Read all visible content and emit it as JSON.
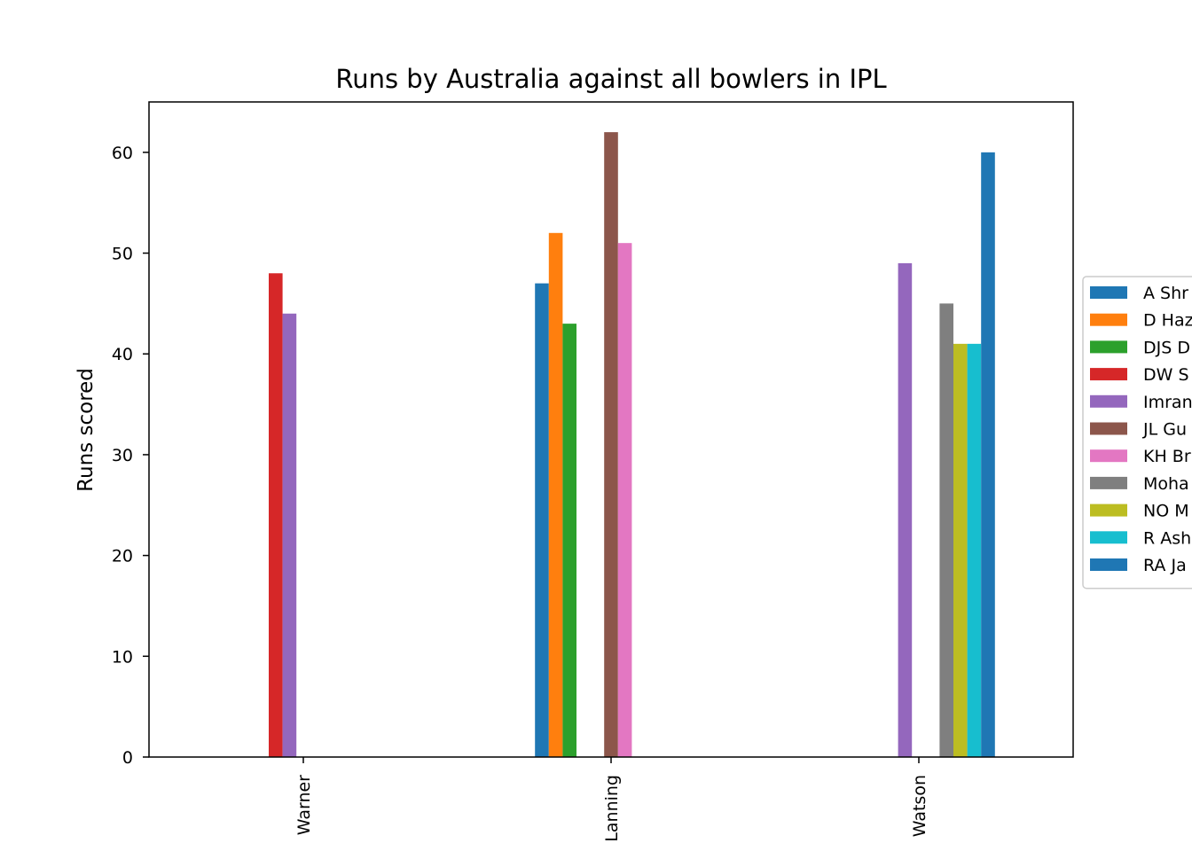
{
  "chart_data": {
    "type": "bar",
    "title": "Runs by Australia against all bowlers in IPL",
    "xlabel": "",
    "ylabel": "Runs scored",
    "ylim": [
      0,
      65
    ],
    "yticks": [
      0,
      10,
      20,
      30,
      40,
      50,
      60
    ],
    "grid": false,
    "legend_position": "right (clipped at edge)",
    "categories": [
      "Warner",
      "Lanning",
      "Watson"
    ],
    "series": [
      {
        "name": "A Shr",
        "color": "#1f77b4",
        "values": [
          null,
          47,
          null
        ]
      },
      {
        "name": "D Haz",
        "color": "#ff7f0e",
        "values": [
          null,
          52,
          null
        ]
      },
      {
        "name": "DJS D",
        "color": "#2ca02c",
        "values": [
          null,
          43,
          null
        ]
      },
      {
        "name": "DW S",
        "color": "#d62728",
        "values": [
          48,
          null,
          null
        ]
      },
      {
        "name": "Imran",
        "color": "#9467bd",
        "values": [
          44,
          null,
          49
        ]
      },
      {
        "name": "JL Gu",
        "color": "#8c564b",
        "values": [
          null,
          62,
          null
        ]
      },
      {
        "name": "KH Br",
        "color": "#e377c2",
        "values": [
          null,
          51,
          null
        ]
      },
      {
        "name": "Moha",
        "color": "#7f7f7f",
        "values": [
          null,
          null,
          45
        ]
      },
      {
        "name": "NO M",
        "color": "#bcbd22",
        "values": [
          null,
          null,
          41
        ]
      },
      {
        "name": "R Ash",
        "color": "#17becf",
        "values": [
          null,
          null,
          41
        ]
      },
      {
        "name": "RA Ja",
        "color": "#1f77b4",
        "values": [
          null,
          null,
          60
        ]
      }
    ]
  }
}
